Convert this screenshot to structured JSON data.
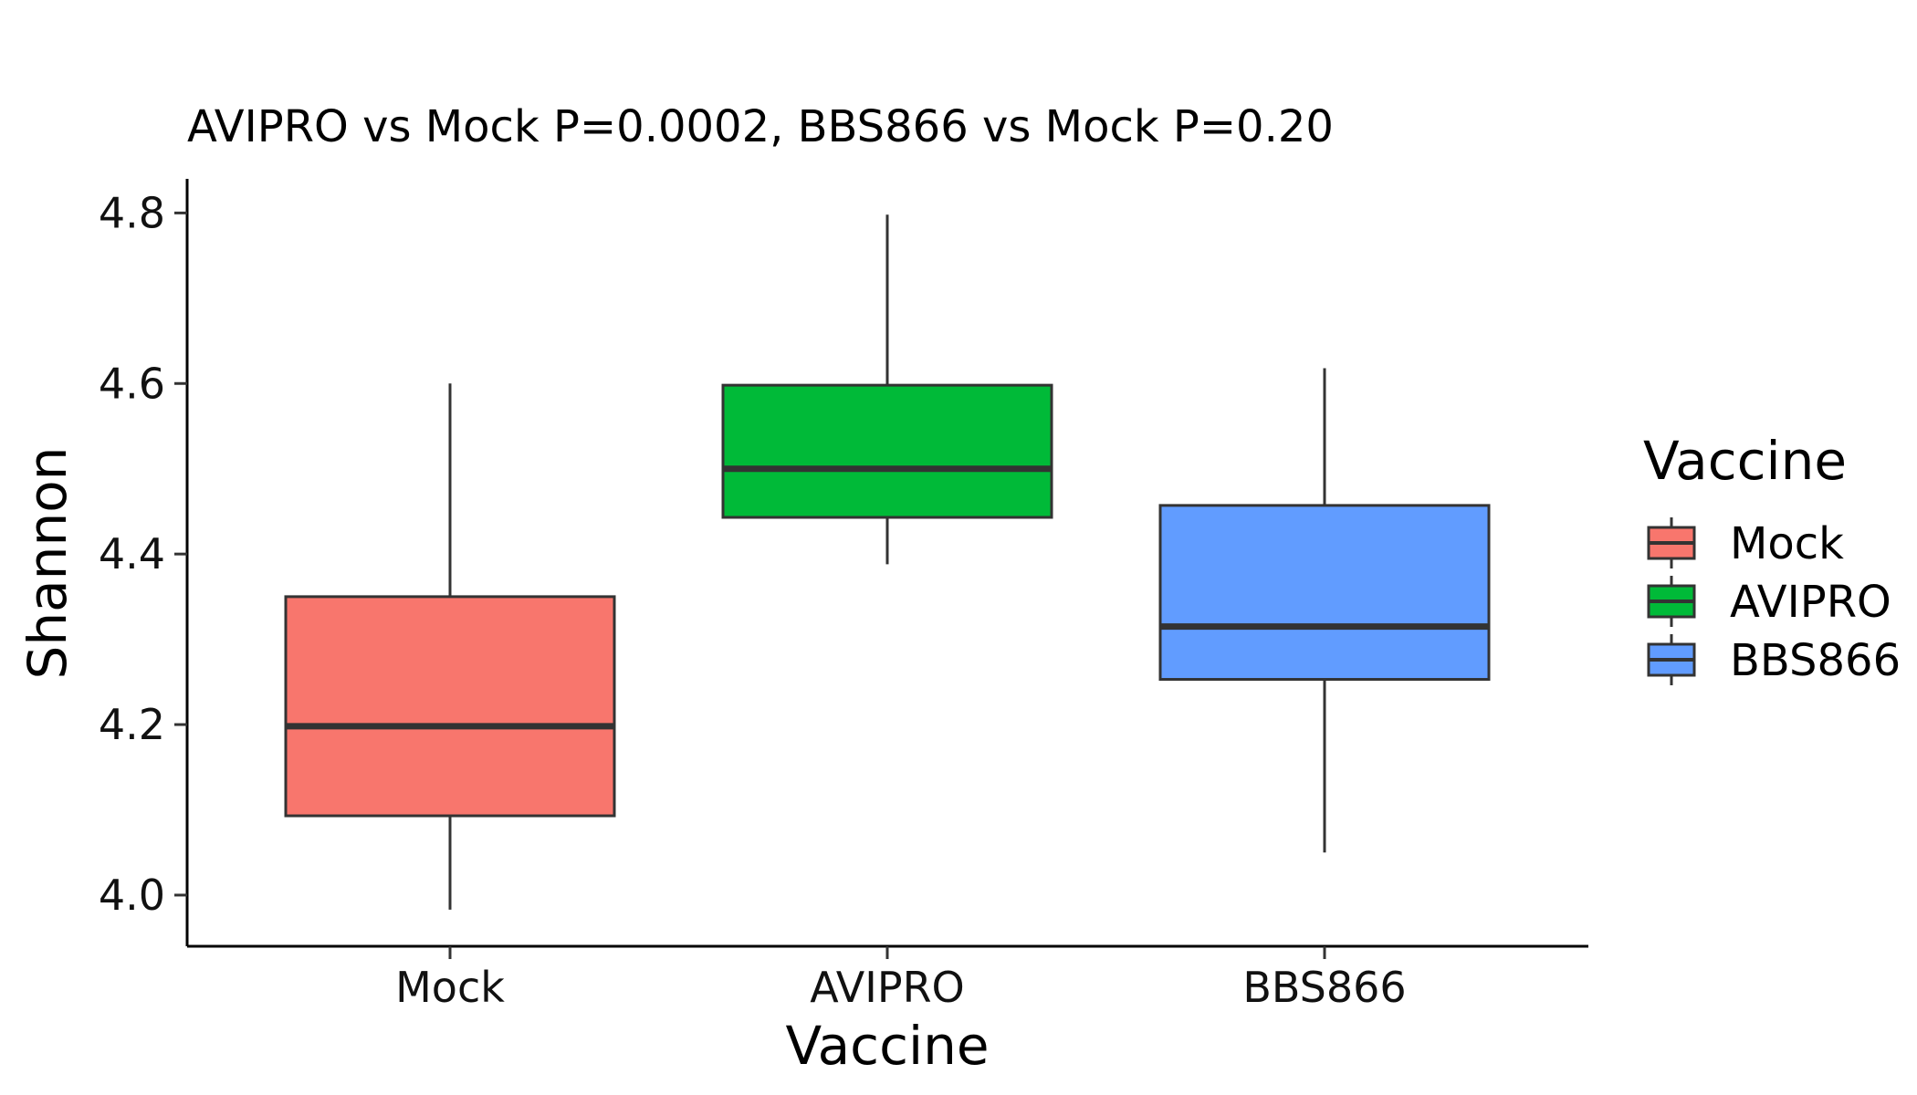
{
  "chart_data": {
    "type": "box",
    "title": "AVIPRO vs Mock P=0.0002, BBS866 vs Mock P=0.20",
    "xlabel": "Vaccine",
    "ylabel": "Shannon",
    "ylim": [
      3.94,
      4.84
    ],
    "yticks": [
      4.0,
      4.2,
      4.4,
      4.6,
      4.8
    ],
    "ytick_labels": [
      "4.0",
      "4.2",
      "4.4",
      "4.6",
      "4.8"
    ],
    "categories": [
      "Mock",
      "AVIPRO",
      "BBS866"
    ],
    "boxes": [
      {
        "name": "Mock",
        "whisker_low": 3.983,
        "q1": 4.093,
        "median": 4.198,
        "q3": 4.35,
        "whisker_high": 4.6,
        "color": "#F8766D"
      },
      {
        "name": "AVIPRO",
        "whisker_low": 4.388,
        "q1": 4.443,
        "median": 4.5,
        "q3": 4.598,
        "whisker_high": 4.798,
        "color": "#00BA38"
      },
      {
        "name": "BBS866",
        "whisker_low": 4.05,
        "q1": 4.253,
        "median": 4.315,
        "q3": 4.457,
        "whisker_high": 4.618,
        "color": "#619CFF"
      }
    ],
    "legend": {
      "title": "Vaccine",
      "position": "right",
      "entries": [
        "Mock",
        "AVIPRO",
        "BBS866"
      ]
    },
    "grid": false
  }
}
